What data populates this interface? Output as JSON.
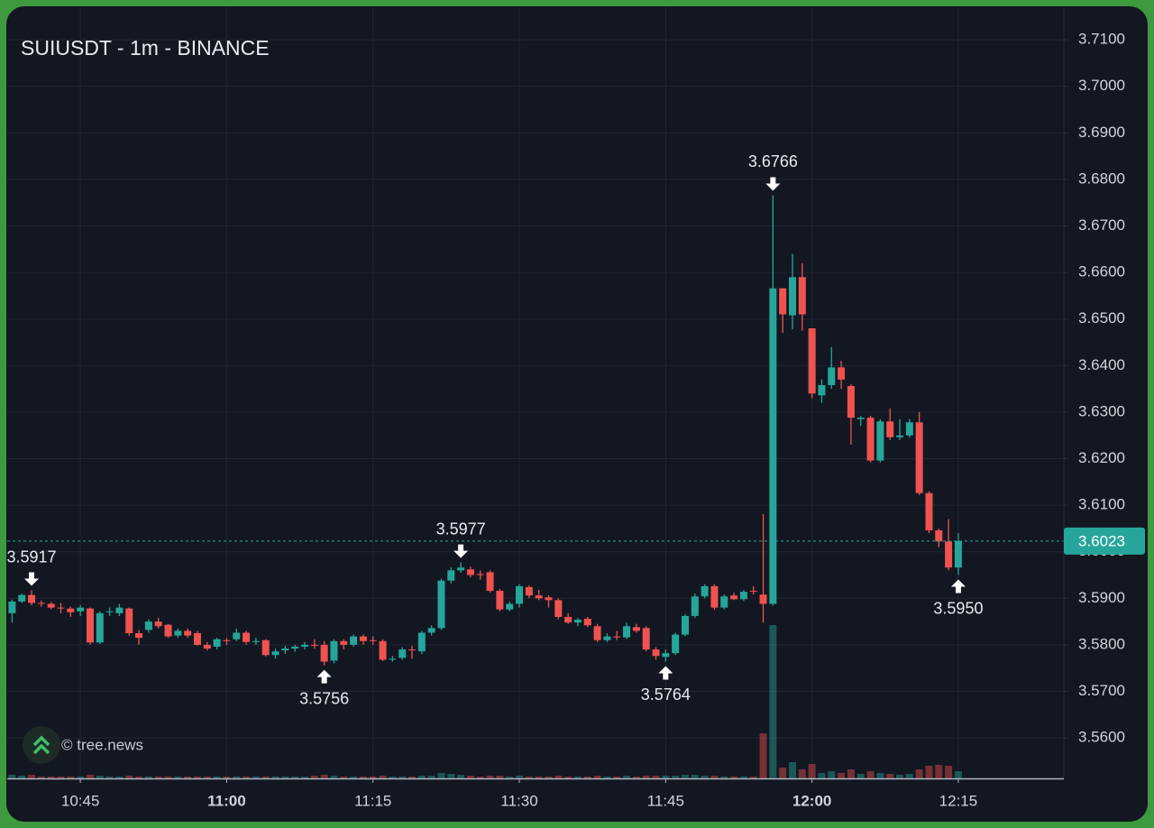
{
  "chart_data": {
    "type": "candlestick",
    "title": "SUIUSDT - 1m - BINANCE",
    "watermark": "© tree.news",
    "up_color": "#26a69a",
    "down_color": "#ef5350",
    "grid": true,
    "x": [
      "10:38",
      "10:39",
      "10:40",
      "10:41",
      "10:42",
      "10:43",
      "10:44",
      "10:45",
      "10:46",
      "10:47",
      "10:48",
      "10:49",
      "10:50",
      "10:51",
      "10:52",
      "10:53",
      "10:54",
      "10:55",
      "10:56",
      "10:57",
      "10:58",
      "10:59",
      "11:00",
      "11:01",
      "11:02",
      "11:03",
      "11:04",
      "11:05",
      "11:06",
      "11:07",
      "11:08",
      "11:09",
      "11:10",
      "11:11",
      "11:12",
      "11:13",
      "11:14",
      "11:15",
      "11:16",
      "11:17",
      "11:18",
      "11:19",
      "11:20",
      "11:21",
      "11:22",
      "11:23",
      "11:24",
      "11:25",
      "11:26",
      "11:27",
      "11:28",
      "11:29",
      "11:30",
      "11:31",
      "11:32",
      "11:33",
      "11:34",
      "11:35",
      "11:36",
      "11:37",
      "11:38",
      "11:39",
      "11:40",
      "11:41",
      "11:42",
      "11:43",
      "11:44",
      "11:45",
      "11:46",
      "11:47",
      "11:48",
      "11:49",
      "11:50",
      "11:51",
      "11:52",
      "11:53",
      "11:54",
      "11:55",
      "11:56",
      "11:57",
      "11:58",
      "11:59",
      "12:00",
      "12:01",
      "12:02",
      "12:03",
      "12:04",
      "12:05",
      "12:06",
      "12:07",
      "12:08",
      "12:09",
      "12:10",
      "12:11",
      "12:12",
      "12:13",
      "12:14",
      "12:15"
    ],
    "open": [
      3.5868,
      3.5893,
      3.5907,
      3.589,
      3.5888,
      3.588,
      3.5878,
      3.5872,
      3.5878,
      3.5805,
      3.587,
      3.5868,
      3.5878,
      3.5825,
      3.5832,
      3.585,
      3.5843,
      3.582,
      3.583,
      3.5825,
      3.58,
      3.5796,
      3.581,
      3.5812,
      3.5826,
      3.5806,
      3.581,
      3.5778,
      3.5788,
      3.5792,
      3.5796,
      3.58,
      3.58,
      3.5766,
      3.5808,
      3.58,
      3.5818,
      3.581,
      3.5808,
      3.5768,
      3.5772,
      3.579,
      3.5786,
      3.5826,
      3.5836,
      3.5938,
      3.596,
      3.5962,
      3.5952,
      3.5956,
      3.5916,
      3.5876,
      3.5888,
      3.5924,
      3.5906,
      3.5902,
      3.5896,
      3.586,
      3.5848,
      3.5856,
      3.584,
      3.581,
      3.5818,
      3.5816,
      3.5838,
      3.5836,
      3.579,
      3.5774,
      3.5782,
      3.5822,
      3.5862,
      3.5904,
      3.5926,
      3.588,
      3.5906,
      3.5898,
      3.5916,
      3.5908,
      3.5888,
      3.6566,
      3.6508,
      3.659,
      3.648,
      3.6336,
      3.6358,
      3.6396,
      3.6356,
      3.6285,
      3.6288,
      3.6196,
      3.628,
      3.6246,
      3.625,
      3.6278,
      3.6126,
      3.6046,
      3.6022,
      3.5966
    ],
    "high": [
      3.5897,
      3.591,
      3.5917,
      3.5895,
      3.5892,
      3.589,
      3.5882,
      3.5885,
      3.588,
      3.5872,
      3.588,
      3.5888,
      3.588,
      3.5832,
      3.5855,
      3.5858,
      3.5845,
      3.5835,
      3.5835,
      3.583,
      3.5806,
      3.5815,
      3.5815,
      3.5835,
      3.583,
      3.5815,
      3.5812,
      3.5792,
      3.5798,
      3.58,
      3.5806,
      3.5812,
      3.5808,
      3.5812,
      3.5812,
      3.5822,
      3.5822,
      3.5818,
      3.5812,
      3.5776,
      3.5795,
      3.5798,
      3.583,
      3.5842,
      3.5942,
      3.5966,
      3.5977,
      3.5968,
      3.596,
      3.596,
      3.592,
      3.5893,
      3.593,
      3.5928,
      3.5918,
      3.5906,
      3.59,
      3.5868,
      3.5858,
      3.586,
      3.5845,
      3.5825,
      3.583,
      3.5848,
      3.5845,
      3.584,
      3.5795,
      3.579,
      3.5826,
      3.5866,
      3.591,
      3.593,
      3.593,
      3.5908,
      3.5912,
      3.5918,
      3.5926,
      3.6081,
      3.6766,
      3.6566,
      3.664,
      3.662,
      3.648,
      3.637,
      3.644,
      3.641,
      3.636,
      3.6292,
      3.6292,
      3.6285,
      3.6308,
      3.6285,
      3.6285,
      3.63,
      3.613,
      3.605,
      3.607,
      3.604
    ],
    "low": [
      3.5848,
      3.589,
      3.5885,
      3.5882,
      3.5876,
      3.5868,
      3.586,
      3.5862,
      3.58,
      3.5802,
      3.5862,
      3.5862,
      3.582,
      3.58,
      3.5826,
      3.5835,
      3.5815,
      3.5815,
      3.5815,
      3.5798,
      3.5788,
      3.579,
      3.58,
      3.5808,
      3.58,
      3.58,
      3.5775,
      3.577,
      3.578,
      3.5785,
      3.579,
      3.5792,
      3.5756,
      3.576,
      3.579,
      3.5796,
      3.58,
      3.58,
      3.5765,
      3.5764,
      3.5768,
      3.577,
      3.578,
      3.582,
      3.5832,
      3.5932,
      3.5955,
      3.5945,
      3.594,
      3.5912,
      3.5872,
      3.5872,
      3.588,
      3.59,
      3.5896,
      3.588,
      3.5855,
      3.5845,
      3.584,
      3.5838,
      3.5806,
      3.5806,
      3.581,
      3.5812,
      3.5826,
      3.5786,
      3.5768,
      3.5764,
      3.5778,
      3.5818,
      3.5858,
      3.59,
      3.5875,
      3.5876,
      3.5896,
      3.5894,
      3.5908,
      3.5848,
      3.5884,
      3.647,
      3.6478,
      3.6475,
      3.633,
      3.632,
      3.635,
      3.635,
      3.623,
      3.627,
      3.6192,
      3.6192,
      3.624,
      3.624,
      3.6245,
      3.6122,
      3.604,
      3.601,
      3.596,
      3.595
    ],
    "close": [
      3.5893,
      3.5907,
      3.589,
      3.5888,
      3.588,
      3.5879,
      3.587,
      3.588,
      3.5805,
      3.5868,
      3.5872,
      3.588,
      3.5825,
      3.5815,
      3.585,
      3.584,
      3.5818,
      3.583,
      3.582,
      3.58,
      3.5792,
      3.5812,
      3.5808,
      3.5826,
      3.5806,
      3.5808,
      3.5778,
      3.5786,
      3.5792,
      3.5796,
      3.58,
      3.5798,
      3.5764,
      3.5808,
      3.58,
      3.5818,
      3.5808,
      3.5808,
      3.5768,
      3.577,
      3.579,
      3.5788,
      3.5826,
      3.5836,
      3.5938,
      3.596,
      3.5966,
      3.595,
      3.595,
      3.5916,
      3.5876,
      3.5888,
      3.5926,
      3.5906,
      3.59,
      3.5896,
      3.586,
      3.5848,
      3.5854,
      3.5842,
      3.581,
      3.5818,
      3.5816,
      3.584,
      3.583,
      3.579,
      3.5776,
      3.5782,
      3.5822,
      3.5862,
      3.5904,
      3.5926,
      3.588,
      3.5904,
      3.5898,
      3.5914,
      3.5914,
      3.5888,
      3.6566,
      3.651,
      3.659,
      3.651,
      3.634,
      3.6358,
      3.6396,
      3.637,
      3.6288,
      3.6288,
      3.6196,
      3.628,
      3.6246,
      3.625,
      3.6278,
      3.6126,
      3.6046,
      3.6022,
      3.5966,
      3.6023
    ],
    "volume": [
      4,
      3,
      4,
      2,
      2,
      2,
      2,
      2,
      4,
      3,
      2,
      2,
      3,
      2,
      2,
      2,
      2,
      2,
      2,
      2,
      2,
      2,
      2,
      2,
      2,
      2,
      2,
      2,
      2,
      2,
      2,
      3,
      4,
      3,
      2,
      2,
      2,
      2,
      3,
      2,
      2,
      2,
      3,
      3,
      6,
      5,
      4,
      3,
      2,
      3,
      3,
      2,
      3,
      2,
      2,
      2,
      3,
      2,
      2,
      2,
      3,
      2,
      2,
      3,
      2,
      3,
      3,
      3,
      3,
      4,
      4,
      3,
      3,
      2,
      2,
      2,
      2,
      50,
      170,
      12,
      18,
      10,
      16,
      6,
      8,
      6,
      10,
      5,
      8,
      6,
      5,
      4,
      5,
      10,
      14,
      15,
      14,
      8
    ],
    "xticks": [
      "10:45",
      "11:00",
      "11:15",
      "11:30",
      "11:45",
      "12:00",
      "12:15"
    ],
    "ylim": [
      3.5513,
      3.717
    ],
    "yticks": [
      {
        "value": 3.56,
        "label": "3.5600"
      },
      {
        "value": 3.57,
        "label": "3.5700"
      },
      {
        "value": 3.58,
        "label": "3.5800"
      },
      {
        "value": 3.59,
        "label": "3.5900"
      },
      {
        "value": 3.6,
        "label": "3.6000"
      },
      {
        "value": 3.61,
        "label": "3.6100"
      },
      {
        "value": 3.62,
        "label": "3.6200"
      },
      {
        "value": 3.63,
        "label": "3.6300"
      },
      {
        "value": 3.64,
        "label": "3.6400"
      },
      {
        "value": 3.65,
        "label": "3.6500"
      },
      {
        "value": 3.66,
        "label": "3.6600"
      },
      {
        "value": 3.67,
        "label": "3.6700"
      },
      {
        "value": 3.68,
        "label": "3.6800"
      },
      {
        "value": 3.69,
        "label": "3.6900"
      },
      {
        "value": 3.7,
        "label": "3.7000"
      },
      {
        "value": 3.71,
        "label": "3.7100"
      }
    ],
    "last_price": 3.6023,
    "markers": [
      {
        "x": "10:40",
        "price": 3.5917,
        "side": "above"
      },
      {
        "x": "11:10",
        "price": 3.5756,
        "side": "below"
      },
      {
        "x": "11:24",
        "price": 3.5977,
        "side": "above"
      },
      {
        "x": "11:45",
        "price": 3.5764,
        "side": "below"
      },
      {
        "x": "11:56",
        "price": 3.6766,
        "side": "above"
      },
      {
        "x": "12:15",
        "price": 3.595,
        "label": "3.5950",
        "side": "below"
      }
    ]
  }
}
